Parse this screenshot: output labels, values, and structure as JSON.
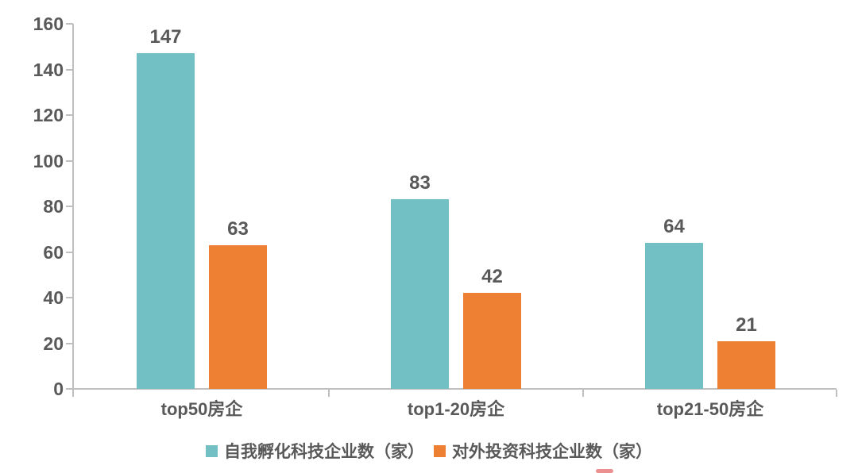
{
  "chart_data": {
    "type": "bar",
    "title": "",
    "categories": [
      "top50房企",
      "top1-20房企",
      "top21-50房企"
    ],
    "series": [
      {
        "name": "自我孵化科技企业数（家）",
        "color": "#73C0C4",
        "values": [
          147,
          83,
          64
        ]
      },
      {
        "name": "对外投资科技企业数（家）",
        "color": "#EE8033",
        "values": [
          63,
          42,
          21
        ]
      }
    ],
    "ylim": [
      0,
      160
    ],
    "yticks": [
      0,
      20,
      40,
      60,
      80,
      100,
      120,
      140,
      160
    ],
    "grid": false,
    "legend_position": "bottom",
    "value_labels": true
  },
  "colors": {
    "text": "#595959",
    "axis": "#BFBFBF",
    "background": "#FFFFFF",
    "bottom_artifact": "#EC8F8F"
  }
}
